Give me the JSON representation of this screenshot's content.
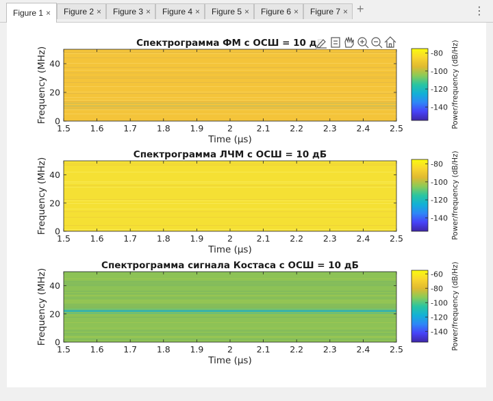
{
  "tabs": [
    {
      "label": "Figure 1",
      "active": true
    },
    {
      "label": "Figure 2",
      "active": false
    },
    {
      "label": "Figure 3",
      "active": false
    },
    {
      "label": "Figure 4",
      "active": false
    },
    {
      "label": "Figure 5",
      "active": false
    },
    {
      "label": "Figure 6",
      "active": false
    },
    {
      "label": "Figure 7",
      "active": false
    }
  ],
  "tab_close_glyph": "×",
  "add_tab_glyph": "+",
  "menu_glyph": "⋮",
  "axes_toolbar": [
    "brush-icon",
    "data-tips-icon",
    "pan-icon",
    "zoom-in-icon",
    "zoom-out-icon",
    "home-icon"
  ],
  "chart_data": [
    {
      "type": "heatmap",
      "title": "Спектрограмма ФМ с ОСШ = 10 дБ",
      "xlabel": "Time (μs)",
      "ylabel": "Frequency (MHz)",
      "xlim": [
        1.5,
        2.5
      ],
      "ylim": [
        0,
        50
      ],
      "xticks": [
        "1.5",
        "1.6",
        "1.7",
        "1.8",
        "1.9",
        "2",
        "2.1",
        "2.2",
        "2.3",
        "2.4",
        "2.5"
      ],
      "yticks": [
        "0",
        "20",
        "40"
      ],
      "colorbar": {
        "label": "Power/frequency (dB/Hz)",
        "range": [
          -155,
          -75
        ],
        "ticks": [
          "-80",
          "-100",
          "-120",
          "-140"
        ],
        "colormap": "parula"
      },
      "dominant_color": "#f4c43a"
    },
    {
      "type": "heatmap",
      "title": "Спектрограмма ЛЧМ с ОСШ = 10 дБ",
      "xlabel": "Time (μs)",
      "ylabel": "Frequency (MHz)",
      "xlim": [
        1.5,
        2.5
      ],
      "ylim": [
        0,
        50
      ],
      "xticks": [
        "1.5",
        "1.6",
        "1.7",
        "1.8",
        "1.9",
        "2",
        "2.1",
        "2.2",
        "2.3",
        "2.4",
        "2.5"
      ],
      "yticks": [
        "0",
        "20",
        "40"
      ],
      "colorbar": {
        "label": "Power/frequency (dB/Hz)",
        "range": [
          -155,
          -75
        ],
        "ticks": [
          "-80",
          "-100",
          "-120",
          "-140"
        ],
        "colormap": "parula"
      },
      "dominant_color": "#f5e034"
    },
    {
      "type": "heatmap",
      "title": "Спектрограмма сигнала Костаса с ОСШ = 10 дБ",
      "xlabel": "Time (μs)",
      "ylabel": "Frequency (MHz)",
      "xlim": [
        1.5,
        2.5
      ],
      "ylim": [
        0,
        50
      ],
      "xticks": [
        "1.5",
        "1.6",
        "1.7",
        "1.8",
        "1.9",
        "2",
        "2.1",
        "2.2",
        "2.3",
        "2.4",
        "2.5"
      ],
      "yticks": [
        "0",
        "20",
        "40"
      ],
      "colorbar": {
        "label": "Power/frequency (dB/Hz)",
        "range": [
          -155,
          -55
        ],
        "ticks": [
          "-60",
          "-80",
          "-100",
          "-120",
          "-140"
        ],
        "colormap": "parula"
      },
      "dominant_color": "#8dc256"
    }
  ]
}
